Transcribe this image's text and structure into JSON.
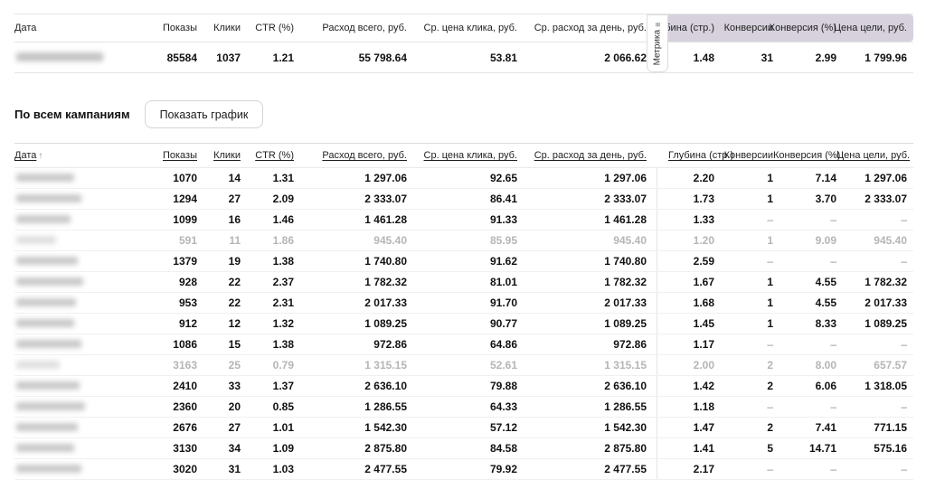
{
  "colors": {
    "metric_header_bg": "#d7d1dd",
    "muted_text": "#b5b5b5",
    "border": "#e3e3e3"
  },
  "summary_table": {
    "columns": {
      "date": "Дата",
      "shows": "Показы",
      "clicks": "Клики",
      "ctr": "CTR (%)",
      "spend": "Расход всего, руб.",
      "cpc": "Ср. цена клика, руб.",
      "daily": "Ср. расход за день, руб.",
      "depth": "Глубина (стр.)",
      "conversions": "Конверсии",
      "conv_rate": "Конверсия (%)",
      "goal_cost": "Цена цели, руб."
    },
    "metric_tab": {
      "label": "Метрика",
      "icon": "≡"
    },
    "values": {
      "shows": "85584",
      "clicks": "1037",
      "ctr": "1.21",
      "spend": "55 798.64",
      "cpc": "53.81",
      "daily": "2 066.62",
      "depth": "1.48",
      "conversions": "31",
      "conv_rate": "2.99",
      "goal_cost": "1 799.96"
    }
  },
  "section": {
    "title": "По всем кампаниям",
    "show_chart_button": "Показать график"
  },
  "campaign_table": {
    "sort_icon": "↑",
    "columns": {
      "date": "Дата",
      "shows": "Показы",
      "clicks": "Клики",
      "ctr": "CTR (%)",
      "spend": "Расход всего, руб.",
      "cpc": "Ср. цена клика, руб.",
      "daily": "Ср. расход за день, руб.",
      "depth": "Глубина (стр.)",
      "conversions": "Конверсии",
      "conv_rate": "Конверсия (%)",
      "goal_cost": "Цена цели, руб."
    },
    "rows": [
      {
        "muted": false,
        "cells": [
          "1070",
          "14",
          "1.31",
          "1 297.06",
          "92.65",
          "1 297.06",
          "2.20",
          "1",
          "7.14",
          "1 297.06"
        ]
      },
      {
        "muted": false,
        "cells": [
          "1294",
          "27",
          "2.09",
          "2 333.07",
          "86.41",
          "2 333.07",
          "1.73",
          "1",
          "3.70",
          "2 333.07"
        ]
      },
      {
        "muted": false,
        "cells": [
          "1099",
          "16",
          "1.46",
          "1 461.28",
          "91.33",
          "1 461.28",
          "1.33",
          "–",
          "–",
          "–"
        ]
      },
      {
        "muted": true,
        "cells": [
          "591",
          "11",
          "1.86",
          "945.40",
          "85.95",
          "945.40",
          "1.20",
          "1",
          "9.09",
          "945.40"
        ]
      },
      {
        "muted": false,
        "cells": [
          "1379",
          "19",
          "1.38",
          "1 740.80",
          "91.62",
          "1 740.80",
          "2.59",
          "–",
          "–",
          "–"
        ]
      },
      {
        "muted": false,
        "cells": [
          "928",
          "22",
          "2.37",
          "1 782.32",
          "81.01",
          "1 782.32",
          "1.67",
          "1",
          "4.55",
          "1 782.32"
        ]
      },
      {
        "muted": false,
        "cells": [
          "953",
          "22",
          "2.31",
          "2 017.33",
          "91.70",
          "2 017.33",
          "1.68",
          "1",
          "4.55",
          "2 017.33"
        ]
      },
      {
        "muted": false,
        "cells": [
          "912",
          "12",
          "1.32",
          "1 089.25",
          "90.77",
          "1 089.25",
          "1.45",
          "1",
          "8.33",
          "1 089.25"
        ]
      },
      {
        "muted": false,
        "cells": [
          "1086",
          "15",
          "1.38",
          "972.86",
          "64.86",
          "972.86",
          "1.17",
          "–",
          "–",
          "–"
        ]
      },
      {
        "muted": true,
        "cells": [
          "3163",
          "25",
          "0.79",
          "1 315.15",
          "52.61",
          "1 315.15",
          "2.00",
          "2",
          "8.00",
          "657.57"
        ]
      },
      {
        "muted": false,
        "cells": [
          "2410",
          "33",
          "1.37",
          "2 636.10",
          "79.88",
          "2 636.10",
          "1.42",
          "2",
          "6.06",
          "1 318.05"
        ]
      },
      {
        "muted": false,
        "cells": [
          "2360",
          "20",
          "0.85",
          "1 286.55",
          "64.33",
          "1 286.55",
          "1.18",
          "–",
          "–",
          "–"
        ]
      },
      {
        "muted": false,
        "cells": [
          "2676",
          "27",
          "1.01",
          "1 542.30",
          "57.12",
          "1 542.30",
          "1.47",
          "2",
          "7.41",
          "771.15"
        ]
      },
      {
        "muted": false,
        "cells": [
          "3130",
          "34",
          "1.09",
          "2 875.80",
          "84.58",
          "2 875.80",
          "1.41",
          "5",
          "14.71",
          "575.16"
        ]
      },
      {
        "muted": false,
        "cells": [
          "3020",
          "31",
          "1.03",
          "2 477.55",
          "79.92",
          "2 477.55",
          "2.17",
          "–",
          "–",
          "–"
        ]
      }
    ]
  }
}
